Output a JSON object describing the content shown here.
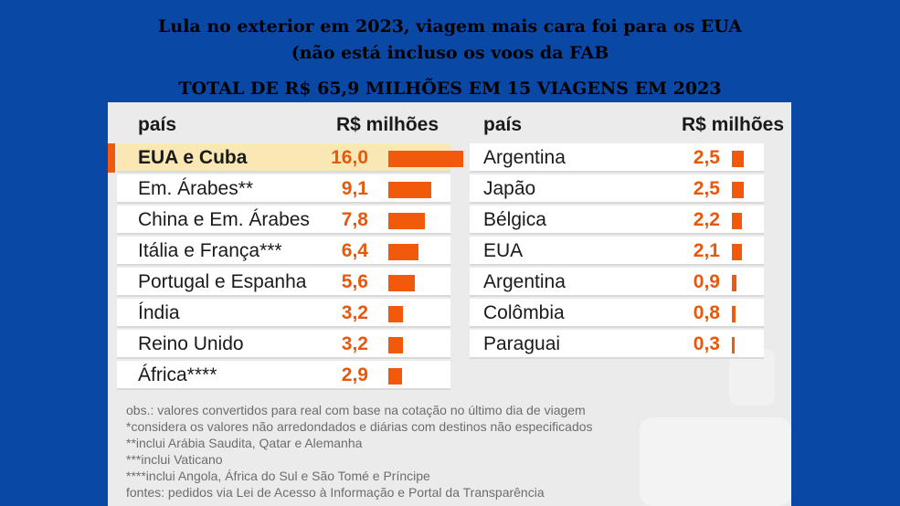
{
  "titles": {
    "line1": "Lula no exterior em 2023, viagem mais cara foi para os EUA",
    "line2": "(não está incluso os voos da FAB",
    "line3": "TOTAL DE R$ 65,9 MILHÕES EM 15 VIAGENS  EM 2023"
  },
  "colors": {
    "background": "#0a48a6",
    "panel": "#ebebeb",
    "bar": "#f05a0a",
    "value_text": "#e8580c",
    "highlight_row": "#fae8b4"
  },
  "chart_data": {
    "type": "bar",
    "orientation": "horizontal",
    "value_label": "R$ milhões",
    "max_value": 16.0,
    "columns": [
      {
        "header_label": "país",
        "header_value": "R$ milhões",
        "rows": [
          {
            "label": "EUA e Cuba",
            "value": 16.0,
            "display": "16,0",
            "highlight": true
          },
          {
            "label": "Em. Árabes**",
            "value": 9.1,
            "display": "9,1"
          },
          {
            "label": "China e Em. Árabes",
            "value": 7.8,
            "display": "7,8"
          },
          {
            "label": "Itália e França***",
            "value": 6.4,
            "display": "6,4"
          },
          {
            "label": "Portugal e Espanha",
            "value": 5.6,
            "display": "5,6"
          },
          {
            "label": "Índia",
            "value": 3.2,
            "display": "3,2"
          },
          {
            "label": "Reino Unido",
            "value": 3.2,
            "display": "3,2"
          },
          {
            "label": "África****",
            "value": 2.9,
            "display": "2,9"
          }
        ]
      },
      {
        "header_label": "país",
        "header_value": "R$ milhões",
        "rows": [
          {
            "label": "Argentina",
            "value": 2.5,
            "display": "2,5"
          },
          {
            "label": "Japão",
            "value": 2.5,
            "display": "2,5"
          },
          {
            "label": "Bélgica",
            "value": 2.2,
            "display": "2,2"
          },
          {
            "label": "EUA",
            "value": 2.1,
            "display": "2,1"
          },
          {
            "label": "Argentina",
            "value": 0.9,
            "display": "0,9"
          },
          {
            "label": "Colômbia",
            "value": 0.8,
            "display": "0,8"
          },
          {
            "label": "Paraguai",
            "value": 0.3,
            "display": "0,3"
          }
        ]
      }
    ]
  },
  "notes": [
    "obs.: valores convertidos para real com base na cotação no último dia de viagem",
    "*considera os valores não arredondados e diárias com destinos não especificados",
    "**inclui Arábia Saudita, Qatar e Alemanha",
    "***inclui Vaticano",
    "****inclui Angola, África do Sul e São Tomé e Príncipe",
    "fontes: pedidos via Lei de Acesso à Informação e Portal da Transparência"
  ]
}
